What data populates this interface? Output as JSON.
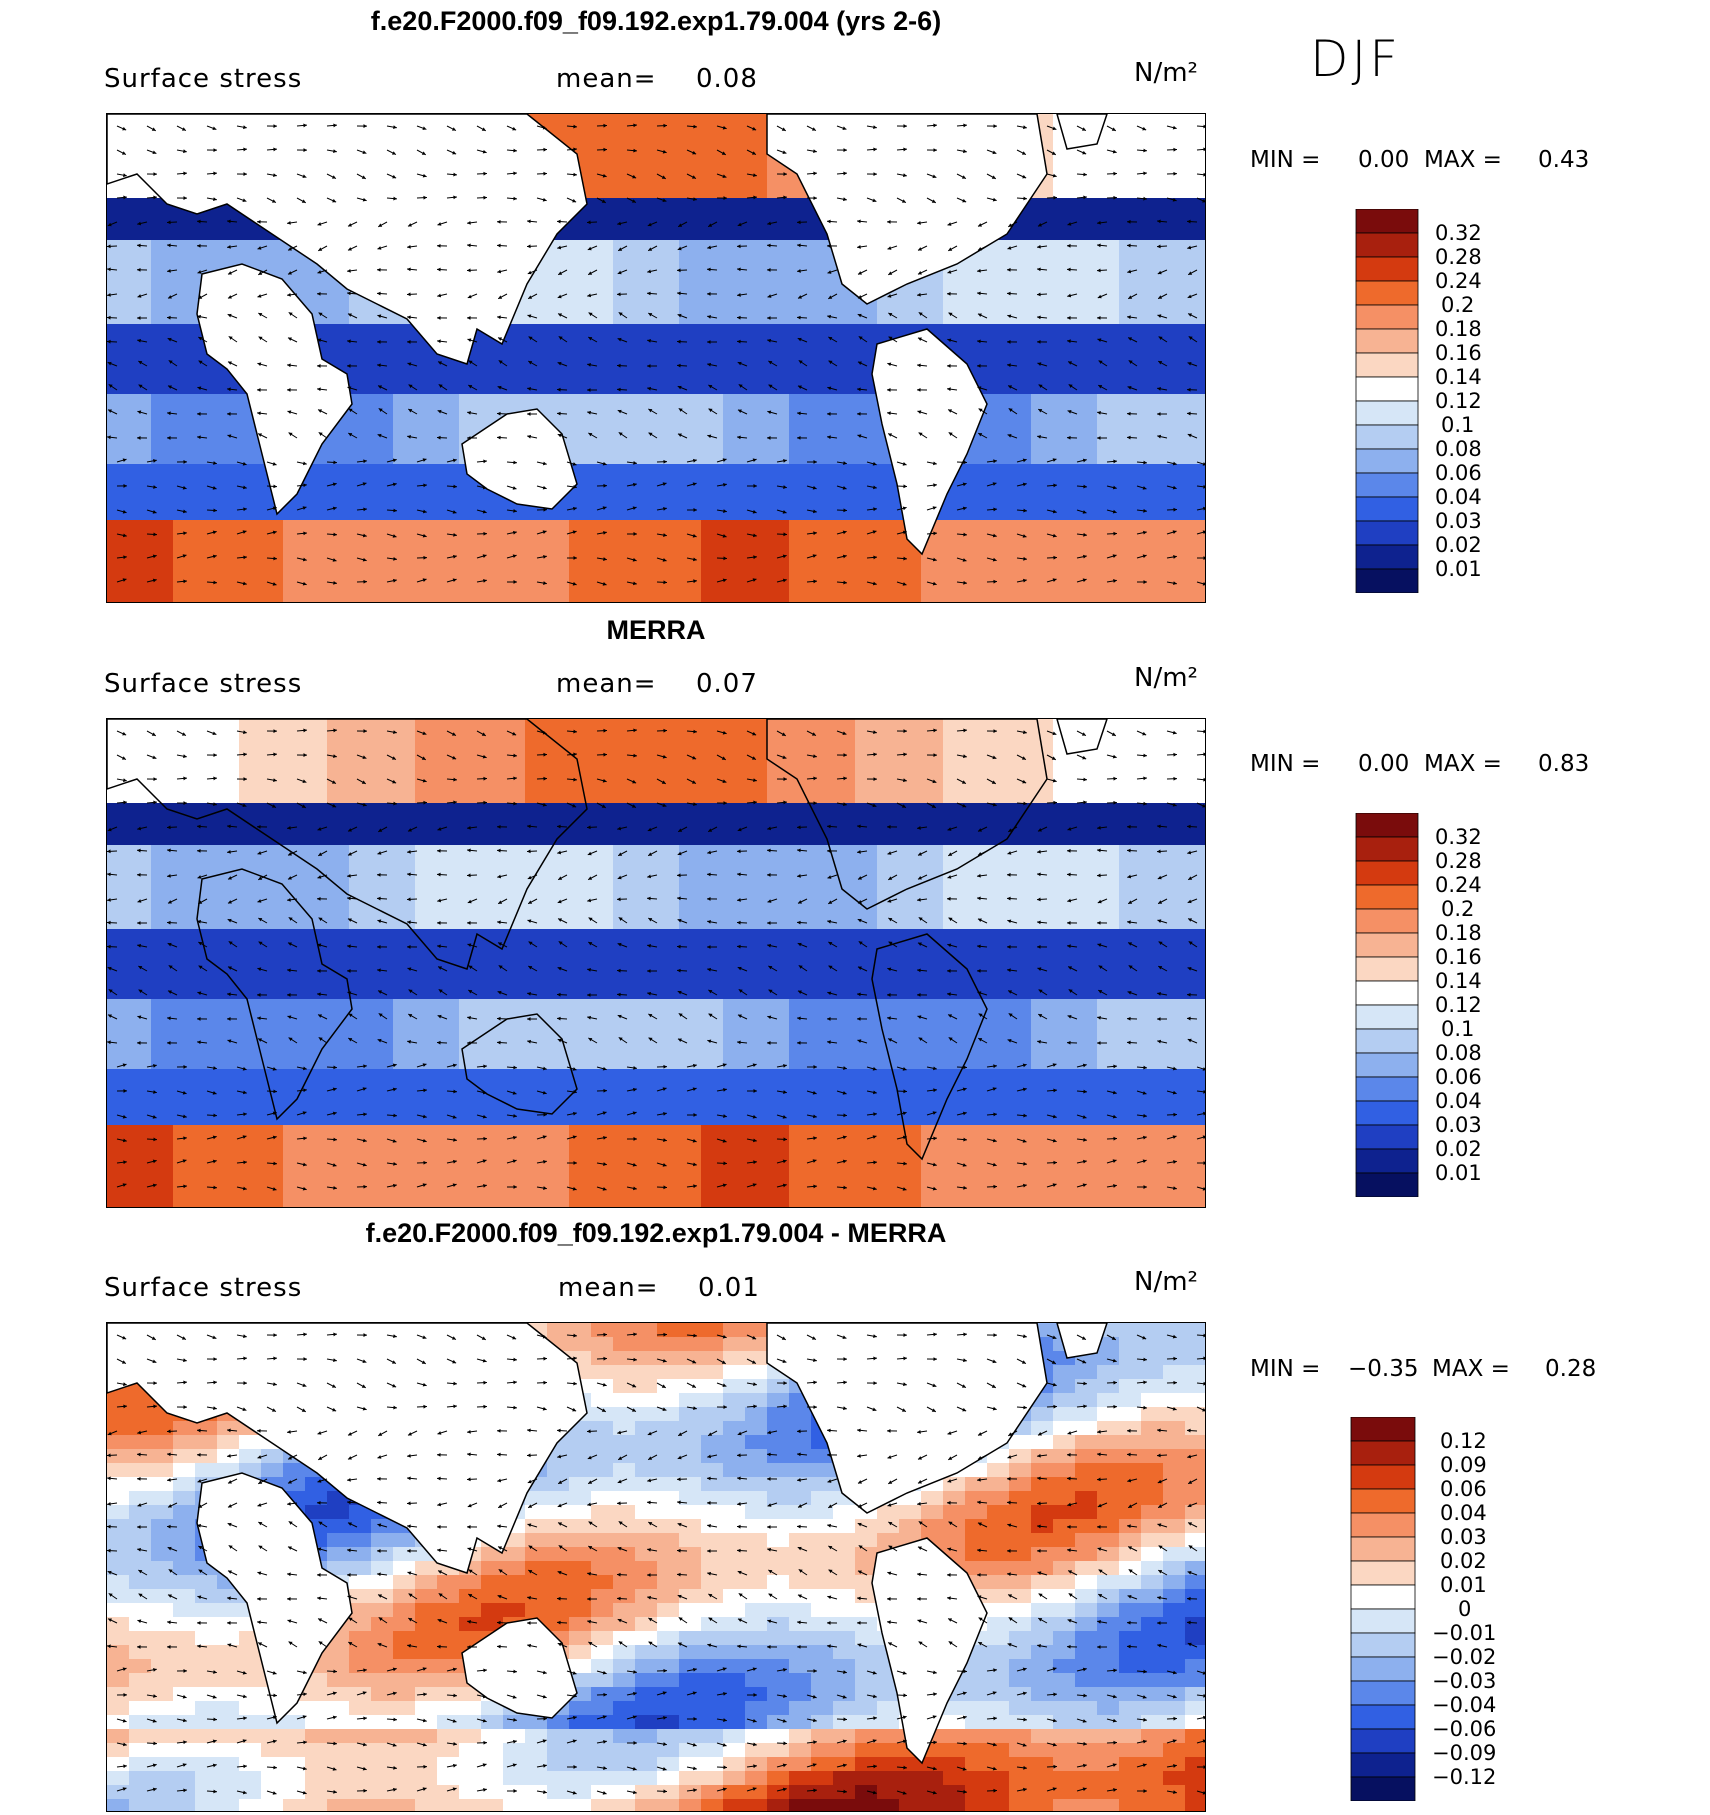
{
  "season": "DJF",
  "panels": [
    {
      "title": "f.e20.F2000.f09_f09.192.exp1.79.004 (yrs 2-6)",
      "variable": "Surface stress",
      "mean_label": "mean=",
      "mean_value": "0.08",
      "units": "N/m²",
      "min_label": "MIN =",
      "min_value": "0.00",
      "max_label": "MAX =",
      "max_value": "0.43",
      "colorbar": [
        "0.32",
        "0.28",
        "0.24",
        "0.2",
        "0.18",
        "0.16",
        "0.14",
        "0.12",
        "0.1",
        "0.08",
        "0.06",
        "0.04",
        "0.03",
        "0.02",
        "0.01"
      ]
    },
    {
      "title": "MERRA",
      "variable": "Surface stress",
      "mean_label": "mean=",
      "mean_value": "0.07",
      "units": "N/m²",
      "min_label": "MIN =",
      "min_value": "0.00",
      "max_label": "MAX =",
      "max_value": "0.83",
      "colorbar": [
        "0.32",
        "0.28",
        "0.24",
        "0.2",
        "0.18",
        "0.16",
        "0.14",
        "0.12",
        "0.1",
        "0.08",
        "0.06",
        "0.04",
        "0.03",
        "0.02",
        "0.01"
      ]
    },
    {
      "title": "f.e20.F2000.f09_f09.192.exp1.79.004 - MERRA",
      "variable": "Surface stress",
      "mean_label": "mean=",
      "mean_value": "0.01",
      "units": "N/m²",
      "min_label": "MIN =",
      "min_value": "−0.35",
      "max_label": "MAX =",
      "max_value": "0.28",
      "colorbar": [
        "0.12",
        "0.09",
        "0.06",
        "0.04",
        "0.03",
        "0.02",
        "0.01",
        "0",
        "−0.01",
        "−0.02",
        "−0.03",
        "−0.04",
        "−0.06",
        "−0.09",
        "−0.12"
      ]
    }
  ],
  "colors": {
    "seq_scale": [
      "#7a0c0c",
      "#a8200e",
      "#d43a10",
      "#ee6a2c",
      "#f59065",
      "#f7b393",
      "#fbd7c2",
      "#ffffff",
      "#d6e6f7",
      "#b4cdf2",
      "#8db0ee",
      "#5b87ea",
      "#3160e3",
      "#1f3fc2",
      "#0e228f",
      "#061060"
    ],
    "land": "#ffffff",
    "coast": "#000000",
    "arrow": "#000000"
  },
  "chart_data": [
    {
      "type": "heatmap",
      "title": "f.e20.F2000.f09_f09.192.exp1.79.004 (yrs 2-6)",
      "field": "Surface stress",
      "units": "N/m²",
      "mean": 0.08,
      "min": 0.0,
      "max": 0.43,
      "levels": [
        0.01,
        0.02,
        0.03,
        0.04,
        0.06,
        0.08,
        0.1,
        0.12,
        0.14,
        0.16,
        0.18,
        0.2,
        0.24,
        0.28,
        0.32
      ],
      "vectors": true
    },
    {
      "type": "heatmap",
      "title": "MERRA",
      "field": "Surface stress",
      "units": "N/m²",
      "mean": 0.07,
      "min": 0.0,
      "max": 0.83,
      "levels": [
        0.01,
        0.02,
        0.03,
        0.04,
        0.06,
        0.08,
        0.1,
        0.12,
        0.14,
        0.16,
        0.18,
        0.2,
        0.24,
        0.28,
        0.32
      ],
      "vectors": true
    },
    {
      "type": "heatmap",
      "title": "f.e20.F2000.f09_f09.192.exp1.79.004 - MERRA",
      "field": "Surface stress",
      "units": "N/m²",
      "mean": 0.01,
      "min": -0.35,
      "max": 0.28,
      "levels": [
        -0.12,
        -0.09,
        -0.06,
        -0.04,
        -0.03,
        -0.02,
        -0.01,
        0,
        0.01,
        0.02,
        0.03,
        0.04,
        0.06,
        0.09,
        0.12
      ],
      "vectors": true
    }
  ]
}
